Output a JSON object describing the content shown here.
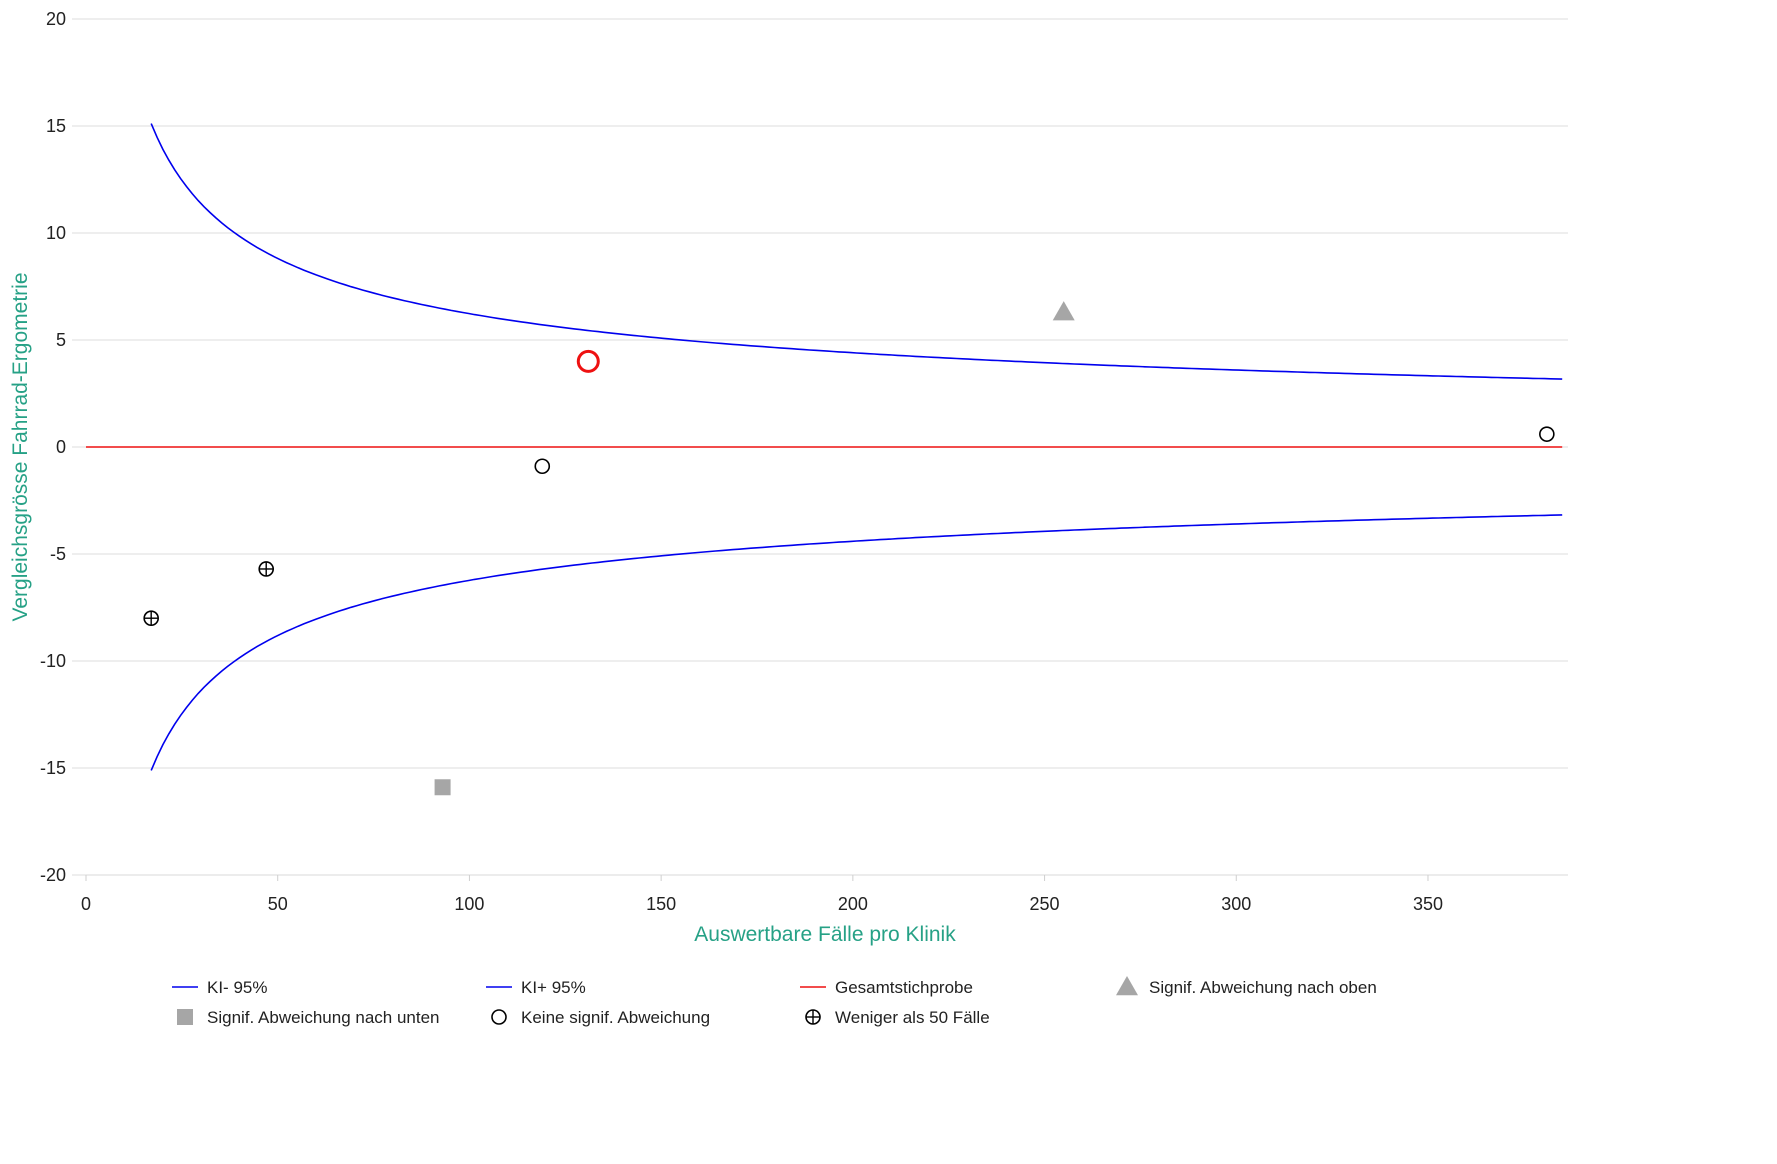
{
  "chart_data": {
    "type": "scatter",
    "xlabel": "Auswertbare Fälle pro Klinik",
    "ylabel": "Vergleichsgrösse Fahrrad-Ergometrie",
    "xlim": [
      0,
      385
    ],
    "ylim": [
      -20,
      20
    ],
    "x_ticks": [
      0,
      50,
      100,
      150,
      200,
      250,
      300,
      350
    ],
    "y_ticks": [
      -20,
      -15,
      -10,
      -5,
      0,
      5,
      10,
      15,
      20
    ],
    "grid": "horizontal",
    "legend_position": "bottom",
    "lines": [
      {
        "name": "KI- 95%",
        "color": "#0000ee",
        "formula": "-62.3/sqrt(x)",
        "x_range": [
          17,
          385
        ]
      },
      {
        "name": "KI+ 95%",
        "color": "#0000ee",
        "formula": "62.3/sqrt(x)",
        "x_range": [
          17,
          385
        ]
      },
      {
        "name": "Gesamtstichprobe",
        "color": "#ee1111",
        "formula": "0",
        "x_range": [
          0,
          385
        ]
      }
    ],
    "points": [
      {
        "x": 17,
        "y": -8.0,
        "category": "Weniger als 50 Fälle"
      },
      {
        "x": 47,
        "y": -5.7,
        "category": "Weniger als 50 Fälle"
      },
      {
        "x": 93,
        "y": -15.9,
        "category": "Signif. Abweichung nach unten"
      },
      {
        "x": 119,
        "y": -0.9,
        "category": "Keine signif. Abweichung"
      },
      {
        "x": 131,
        "y": 4.0,
        "category": "Keine signif. Abweichung",
        "highlight": true
      },
      {
        "x": 255,
        "y": 6.3,
        "category": "Signif. Abweichung nach oben"
      },
      {
        "x": 381,
        "y": 0.6,
        "category": "Keine signif. Abweichung"
      }
    ],
    "legend": [
      {
        "label": "KI- 95%",
        "symbol": "line",
        "color": "#0000ee"
      },
      {
        "label": "KI+ 95%",
        "symbol": "line",
        "color": "#0000ee"
      },
      {
        "label": "Gesamtstichprobe",
        "symbol": "line",
        "color": "#ee1111"
      },
      {
        "label": "Signif. Abweichung nach oben",
        "symbol": "triangle",
        "color": "#a6a6a6"
      },
      {
        "label": "Signif. Abweichung nach unten",
        "symbol": "square",
        "color": "#a6a6a6"
      },
      {
        "label": "Keine signif. Abweichung",
        "symbol": "circle",
        "color": "#000000"
      },
      {
        "label": "Weniger als 50 Fälle",
        "symbol": "circle-plus",
        "color": "#000000"
      }
    ],
    "colors": {
      "grid": "#dddddd",
      "axis_title": "#26a186",
      "highlight": "#ee1111",
      "marker_gray": "#a6a6a6"
    }
  }
}
